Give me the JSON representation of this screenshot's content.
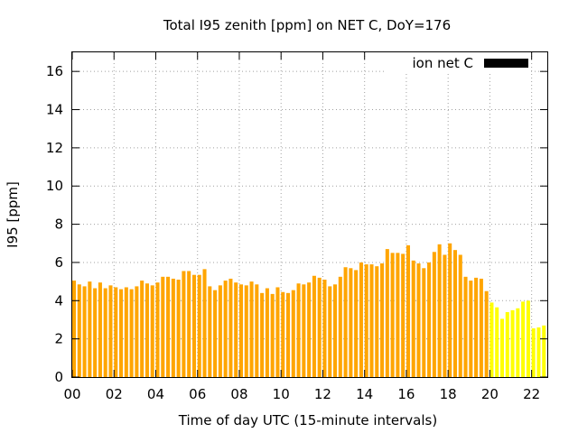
{
  "chart_data": {
    "type": "bar",
    "title": "Total I95 zenith [ppm] on NET C, DoY=176",
    "xlabel": "Time of day UTC (15-minute intervals)",
    "ylabel": "I95 [ppm]",
    "xlim": [
      0,
      22.75
    ],
    "ylim": [
      0,
      17
    ],
    "x_ticks": [
      "00",
      "02",
      "04",
      "06",
      "08",
      "10",
      "12",
      "14",
      "16",
      "18",
      "20",
      "22"
    ],
    "y_ticks": [
      "0",
      "2",
      "4",
      "6",
      "8",
      "10",
      "12",
      "14",
      "16"
    ],
    "grid": true,
    "legend_position": "top-right",
    "x_interval_hours": 0.25,
    "series": [
      {
        "name": "ion net C",
        "legend_color": "#000000",
        "color": "#ffa500",
        "values": [
          5.05,
          4.85,
          4.75,
          5.0,
          4.65,
          4.95,
          4.65,
          4.8,
          4.7,
          4.6,
          4.7,
          4.6,
          4.75,
          5.05,
          4.9,
          4.8,
          4.95,
          5.25,
          5.25,
          5.15,
          5.1,
          5.55,
          5.55,
          5.35,
          5.35,
          5.65,
          4.75,
          4.55,
          4.8,
          5.05,
          5.15,
          4.95,
          4.85,
          4.8,
          5.0,
          4.85,
          4.4,
          4.65,
          4.35,
          4.7,
          4.45,
          4.4,
          4.55,
          4.9,
          4.85,
          4.95,
          5.3,
          5.2,
          5.1,
          4.75,
          4.85,
          5.25,
          5.75,
          5.7,
          5.6,
          6.0,
          5.9,
          5.9,
          5.8,
          5.95,
          6.7,
          6.5,
          6.5,
          6.45,
          6.9,
          6.1,
          5.95,
          5.7,
          6.0,
          6.55,
          6.95,
          6.4,
          7.0,
          6.65,
          6.4,
          5.25,
          5.05,
          5.2,
          5.15,
          4.5
        ]
      },
      {
        "color": "#ffff00",
        "values": [
          3.9,
          3.65,
          3.05,
          3.4,
          3.5,
          3.6,
          3.95,
          4.0,
          2.55,
          2.6,
          2.7
        ]
      }
    ]
  }
}
